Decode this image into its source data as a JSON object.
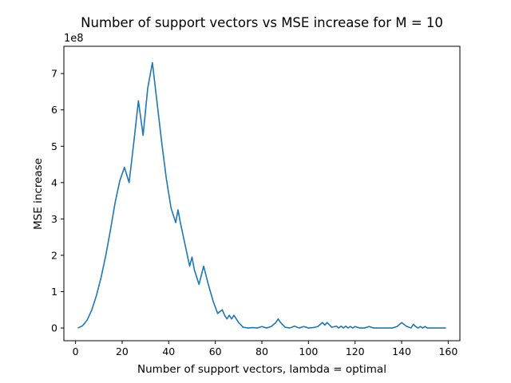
{
  "chart_data": {
    "type": "line",
    "title": "Number of support vectors vs MSE increase for M = 10",
    "xlabel": "Number of support vectors, lambda = optimal",
    "ylabel": "MSE increase",
    "y_offset_label": "1e8",
    "xlim": [
      -5,
      165
    ],
    "ylim": [
      -0.35,
      7.75
    ],
    "y_scale_note": "values in units of 1e8",
    "x_ticks": [
      0,
      20,
      40,
      60,
      80,
      100,
      120,
      140,
      160
    ],
    "y_ticks": [
      0,
      1,
      2,
      3,
      4,
      5,
      6,
      7
    ],
    "grid": false,
    "line_color": "#1f77b4",
    "series": [
      {
        "x": [
          1,
          3,
          5,
          7,
          9,
          11,
          13,
          15,
          17,
          19,
          21,
          23,
          25,
          27,
          29,
          31,
          33,
          35,
          37,
          39,
          41,
          43,
          44,
          45,
          47,
          49,
          50,
          51,
          53,
          55,
          57,
          59,
          61,
          63,
          64,
          65,
          66,
          67,
          68,
          70,
          72,
          74,
          76,
          78,
          80,
          82,
          84,
          86,
          87,
          88,
          90,
          92,
          94,
          96,
          98,
          100,
          102,
          104,
          106,
          107,
          108,
          110,
          112,
          113,
          114,
          115,
          116,
          117,
          118,
          119,
          120,
          122,
          124,
          126,
          128,
          130,
          132,
          134,
          136,
          138,
          140,
          142,
          144,
          145,
          146,
          147,
          148,
          149,
          150,
          151,
          152,
          154,
          156,
          158,
          159
        ],
        "values": [
          0.0,
          0.06,
          0.22,
          0.5,
          0.9,
          1.4,
          2.0,
          2.7,
          3.45,
          4.05,
          4.42,
          4.0,
          5.1,
          6.25,
          5.3,
          6.6,
          7.3,
          6.2,
          5.1,
          4.1,
          3.3,
          2.9,
          3.25,
          2.9,
          2.3,
          1.7,
          1.95,
          1.6,
          1.2,
          1.7,
          1.2,
          0.75,
          0.4,
          0.5,
          0.35,
          0.25,
          0.35,
          0.25,
          0.35,
          0.15,
          0.02,
          0.0,
          0.01,
          0.0,
          0.04,
          0.0,
          0.04,
          0.15,
          0.25,
          0.15,
          0.02,
          0.0,
          0.05,
          0.0,
          0.04,
          0.0,
          0.01,
          0.04,
          0.15,
          0.08,
          0.15,
          0.02,
          0.05,
          0.0,
          0.05,
          0.0,
          0.05,
          0.0,
          0.04,
          0.0,
          0.04,
          0.0,
          0.0,
          0.04,
          0.0,
          0.0,
          0.0,
          0.0,
          0.0,
          0.04,
          0.15,
          0.05,
          0.0,
          0.1,
          0.04,
          0.0,
          0.04,
          0.0,
          0.04,
          0.0,
          0.0,
          0.0,
          0.0,
          0.0,
          0.0
        ]
      }
    ]
  }
}
